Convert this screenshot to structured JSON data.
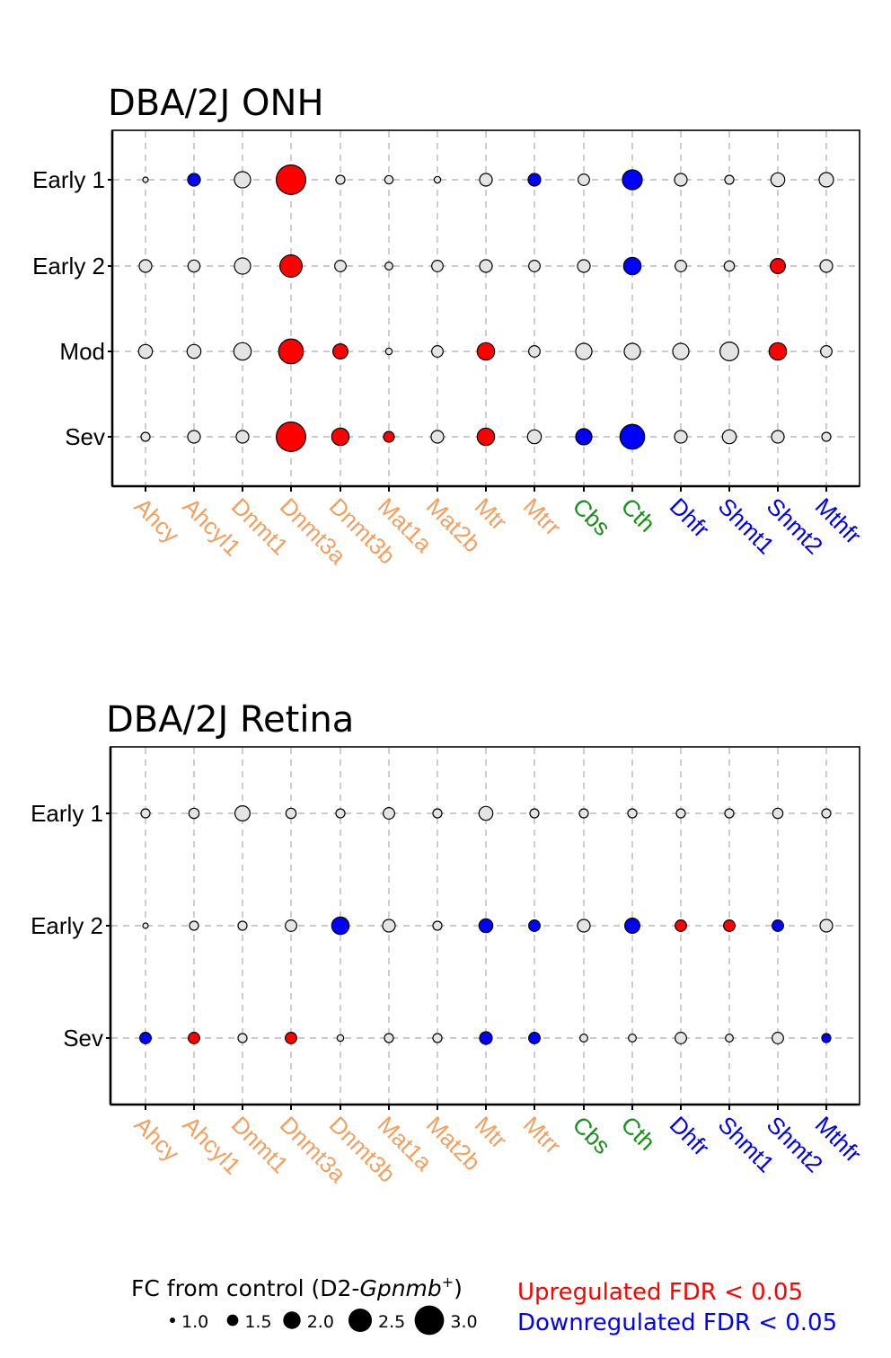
{
  "chart_data": [
    {
      "type": "scatter",
      "title": "DBA/2J ONH",
      "categories": [
        "Ahcy",
        "Ahcyl1",
        "Dnmt1",
        "Dnmt3a",
        "Dnmt3b",
        "Mat1a",
        "Mat2b",
        "Mtr",
        "Mtrr",
        "Cbs",
        "Cth",
        "Dhfr",
        "Shmt1",
        "Shmt2",
        "Mthfr"
      ],
      "rows": [
        "Early 1",
        "Early 2",
        "Mod",
        "Sev"
      ],
      "series": [
        {
          "name": "Early 1",
          "fc": [
            1.0,
            1.6,
            1.9,
            3.0,
            1.3,
            1.25,
            1.1,
            1.6,
            1.6,
            1.5,
            2.2,
            1.6,
            1.3,
            1.7,
            1.75
          ],
          "status": [
            "ns",
            "down",
            "ns",
            "up",
            "ns",
            "ns",
            "ns",
            "ns",
            "down",
            "ns",
            "down",
            "ns",
            "ns",
            "ns",
            "ns"
          ]
        },
        {
          "name": "Early 2",
          "fc": [
            1.6,
            1.55,
            1.9,
            2.4,
            1.5,
            1.2,
            1.5,
            1.6,
            1.5,
            1.6,
            2.0,
            1.5,
            1.4,
            1.8,
            1.6
          ],
          "status": [
            "ns",
            "ns",
            "ns",
            "up",
            "ns",
            "ns",
            "ns",
            "ns",
            "ns",
            "ns",
            "down",
            "ns",
            "ns",
            "up",
            "ns"
          ]
        },
        {
          "name": "Mod",
          "fc": [
            1.7,
            1.7,
            2.0,
            2.6,
            1.8,
            1.1,
            1.5,
            2.0,
            1.5,
            1.9,
            1.9,
            1.9,
            2.1,
            2.0,
            1.5
          ],
          "status": [
            "ns",
            "ns",
            "ns",
            "up",
            "up",
            "ns",
            "ns",
            "up",
            "ns",
            "ns",
            "ns",
            "ns",
            "ns",
            "up",
            "ns"
          ]
        },
        {
          "name": "Sev",
          "fc": [
            1.3,
            1.6,
            1.6,
            3.0,
            2.0,
            1.45,
            1.6,
            2.0,
            1.7,
            1.9,
            2.6,
            1.6,
            1.7,
            1.6,
            1.3
          ],
          "status": [
            "ns",
            "ns",
            "ns",
            "up",
            "up",
            "up",
            "ns",
            "up",
            "ns",
            "down",
            "down",
            "ns",
            "ns",
            "ns",
            "ns"
          ]
        }
      ]
    },
    {
      "type": "scatter",
      "title": "DBA/2J Retina",
      "categories": [
        "Ahcy",
        "Ahcyl1",
        "Dnmt1",
        "Dnmt3a",
        "Dnmt3b",
        "Mat1a",
        "Mat2b",
        "Mtr",
        "Mtrr",
        "Cbs",
        "Cth",
        "Dhfr",
        "Shmt1",
        "Shmt2",
        "Mthfr"
      ],
      "rows": [
        "Early 1",
        "Early 2",
        "Sev"
      ],
      "series": [
        {
          "name": "Early 1",
          "fc": [
            1.3,
            1.4,
            1.8,
            1.4,
            1.3,
            1.5,
            1.3,
            1.7,
            1.3,
            1.3,
            1.3,
            1.3,
            1.3,
            1.4,
            1.3
          ],
          "status": [
            "ns",
            "ns",
            "ns",
            "ns",
            "ns",
            "ns",
            "ns",
            "ns",
            "ns",
            "ns",
            "ns",
            "ns",
            "ns",
            "ns",
            "ns"
          ]
        },
        {
          "name": "Early 2",
          "fc": [
            1.0,
            1.3,
            1.3,
            1.5,
            2.0,
            1.6,
            1.3,
            1.7,
            1.5,
            1.6,
            1.8,
            1.5,
            1.5,
            1.5,
            1.6
          ],
          "status": [
            "ns",
            "ns",
            "ns",
            "ns",
            "down",
            "ns",
            "ns",
            "down",
            "down",
            "ns",
            "down",
            "up",
            "up",
            "down",
            "ns"
          ]
        },
        {
          "name": "Sev",
          "fc": [
            1.5,
            1.5,
            1.3,
            1.5,
            1.1,
            1.3,
            1.3,
            1.6,
            1.5,
            1.2,
            1.2,
            1.5,
            1.2,
            1.5,
            1.3
          ],
          "status": [
            "down",
            "up",
            "ns",
            "up",
            "ns",
            "ns",
            "ns",
            "down",
            "down",
            "ns",
            "ns",
            "ns",
            "ns",
            "ns",
            "down"
          ]
        }
      ]
    }
  ],
  "category_groups": [
    "orange",
    "orange",
    "orange",
    "orange",
    "orange",
    "orange",
    "orange",
    "orange",
    "orange",
    "green",
    "green",
    "blue",
    "blue",
    "blue",
    "blue"
  ],
  "colors": {
    "up": "#ff0000",
    "down": "#0000ff",
    "ns": "#e4e4e4",
    "orange": "#f0a060",
    "green": "#1a8c1a",
    "blue": "#0000ee",
    "grid": "#b8b8b8"
  },
  "legend": {
    "size_title_prefix": "FC from control (D2-",
    "size_title_italic": "Gpnmb",
    "size_title_sup": "+",
    "size_title_suffix": ")",
    "size_values": [
      1.0,
      1.5,
      2.0,
      2.5,
      3.0
    ],
    "size_labels": [
      "1.0",
      "1.5",
      "2.0",
      "2.5",
      "3.0"
    ],
    "up_label": "Upregulated FDR < 0.05",
    "down_label": "Downregulated FDR < 0.05"
  }
}
